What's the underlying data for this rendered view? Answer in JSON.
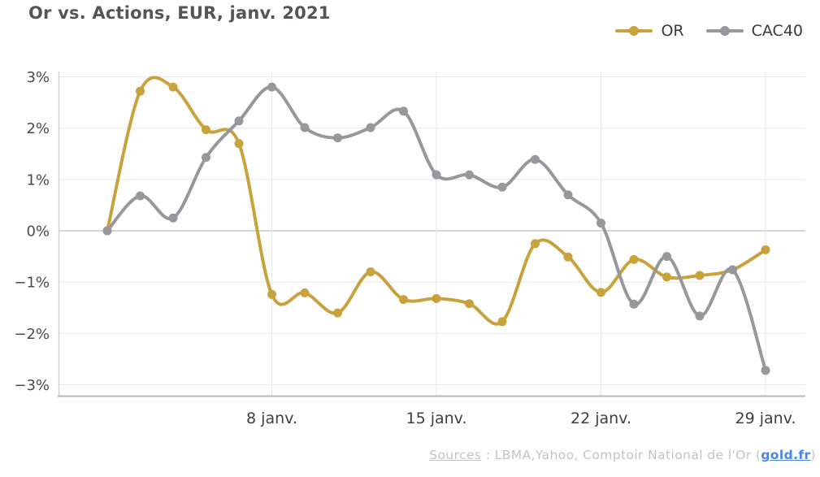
{
  "title": "Or vs. Actions, EUR, janv. 2021",
  "footer": {
    "sources_label": "Sources",
    "separator": " : ",
    "text": "LBMA,Yahoo, Comptoir National de l'Or",
    "link_open": " (",
    "link_label": "gold.fr",
    "link_close": ")"
  },
  "colors": {
    "gold": "#C8A23C",
    "gray": "#97989B",
    "grid": "#E9E9E9",
    "zero_line": "#C9C9C9",
    "left_axis": "#D2D2D2",
    "bottom_axis": "#B9B9B9",
    "title_text": "#54555A",
    "y_tick_text": "#4A4A4A",
    "x_tick_text": "#3F3F3F",
    "legend_text": "#3A3A3A",
    "footer_text": "#C1C4C7",
    "link": "#4A86E8"
  },
  "chart_data": {
    "type": "line",
    "title": "Or vs. Actions, EUR, janv. 2021",
    "ylabel": "",
    "xlabel": "",
    "ylim": [
      -3,
      3
    ],
    "grid": true,
    "legend_position": "top-right",
    "units": "percent",
    "y_ticks": [
      {
        "value": 3,
        "label": "3%"
      },
      {
        "value": 2,
        "label": "2%"
      },
      {
        "value": 1,
        "label": "1%"
      },
      {
        "value": 0,
        "label": "0%"
      },
      {
        "value": -1,
        "label": "−1%"
      },
      {
        "value": -2,
        "label": "−2%"
      },
      {
        "value": -3,
        "label": "−3%"
      }
    ],
    "x_count": 21,
    "x_ticks": [
      {
        "index": 5,
        "label": "8 janv."
      },
      {
        "index": 10,
        "label": "15 janv."
      },
      {
        "index": 15,
        "label": "22 janv."
      },
      {
        "index": 20,
        "label": "29 janv."
      }
    ],
    "series": [
      {
        "name": "OR",
        "color": "#C8A23C",
        "values": [
          0,
          2.72,
          2.8,
          1.97,
          1.7,
          -1.24,
          -1.21,
          -1.6,
          -0.8,
          -1.34,
          -1.32,
          -1.42,
          -1.77,
          -0.25,
          -0.51,
          -1.2,
          -0.56,
          -0.9,
          -0.87,
          -0.76,
          -0.37
        ]
      },
      {
        "name": "CAC40",
        "color": "#97989B",
        "values": [
          0,
          0.68,
          0.25,
          1.43,
          2.14,
          2.8,
          2.01,
          1.81,
          2.01,
          2.33,
          1.09,
          1.09,
          0.85,
          1.39,
          0.7,
          0.15,
          -1.43,
          -0.5,
          -1.66,
          -0.76,
          -2.72
        ]
      }
    ]
  }
}
